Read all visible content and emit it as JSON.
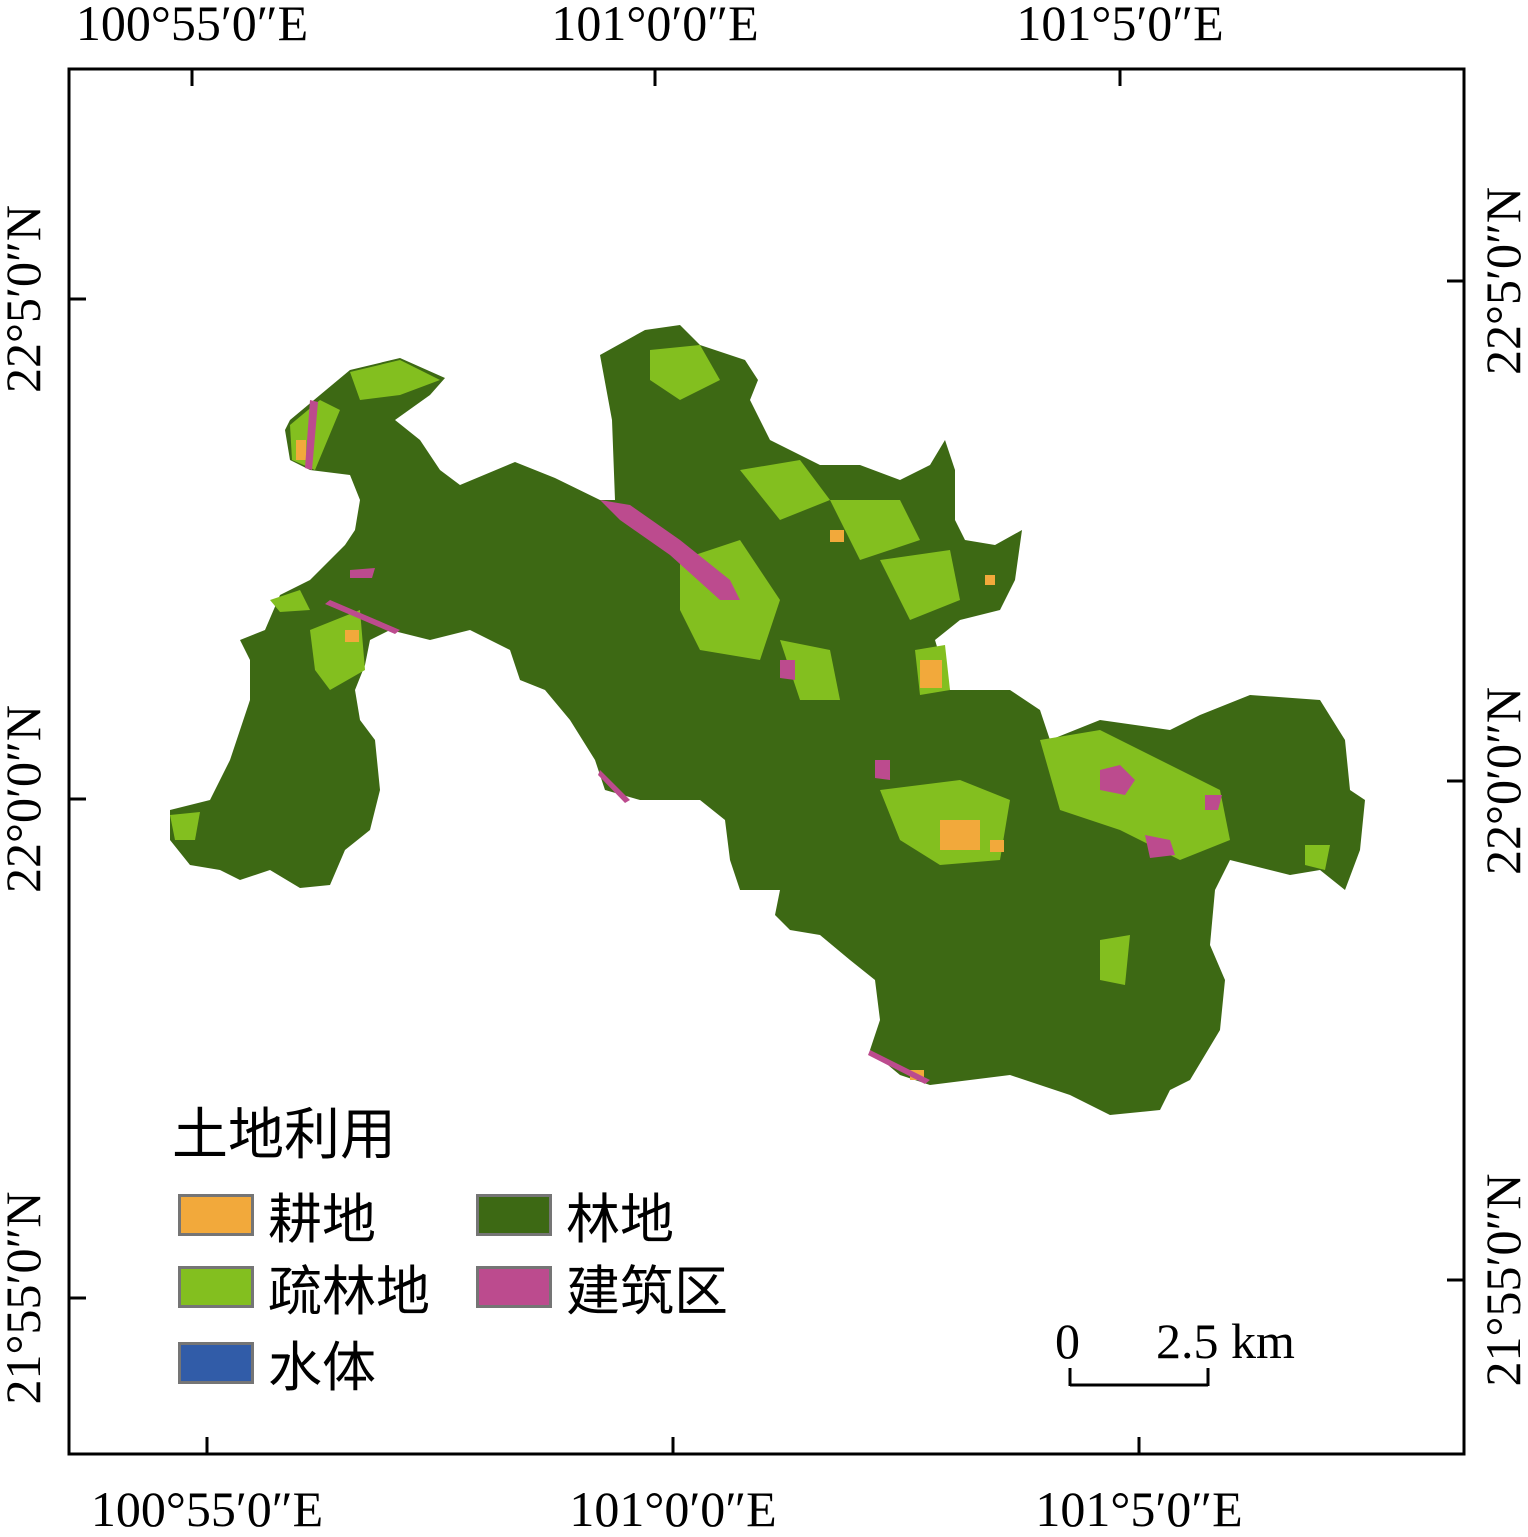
{
  "axes": {
    "top_ticks": [
      "100°55′0″E",
      "101°0′0″E",
      "101°5′0″E"
    ],
    "bottom_ticks": [
      "100°55′0″E",
      "101°0′0″E",
      "101°5′0″E"
    ],
    "left_ticks": [
      "22°5′0″N",
      "22°0′0″N",
      "21°55′0″N"
    ],
    "right_ticks": [
      "22°5′0″N",
      "22°0′0″N",
      "21°55′0″N"
    ]
  },
  "legend": {
    "title": "土地利用",
    "items": [
      {
        "label": "耕地",
        "color": "#F2A93B"
      },
      {
        "label": "林地",
        "color": "#3D6914"
      },
      {
        "label": "疏林地",
        "color": "#83BF1F"
      },
      {
        "label": "建筑区",
        "color": "#BC4B8E"
      },
      {
        "label": "水体",
        "color": "#315CA8"
      }
    ]
  },
  "scale_bar": {
    "start": "0",
    "end": "2.5 km"
  }
}
